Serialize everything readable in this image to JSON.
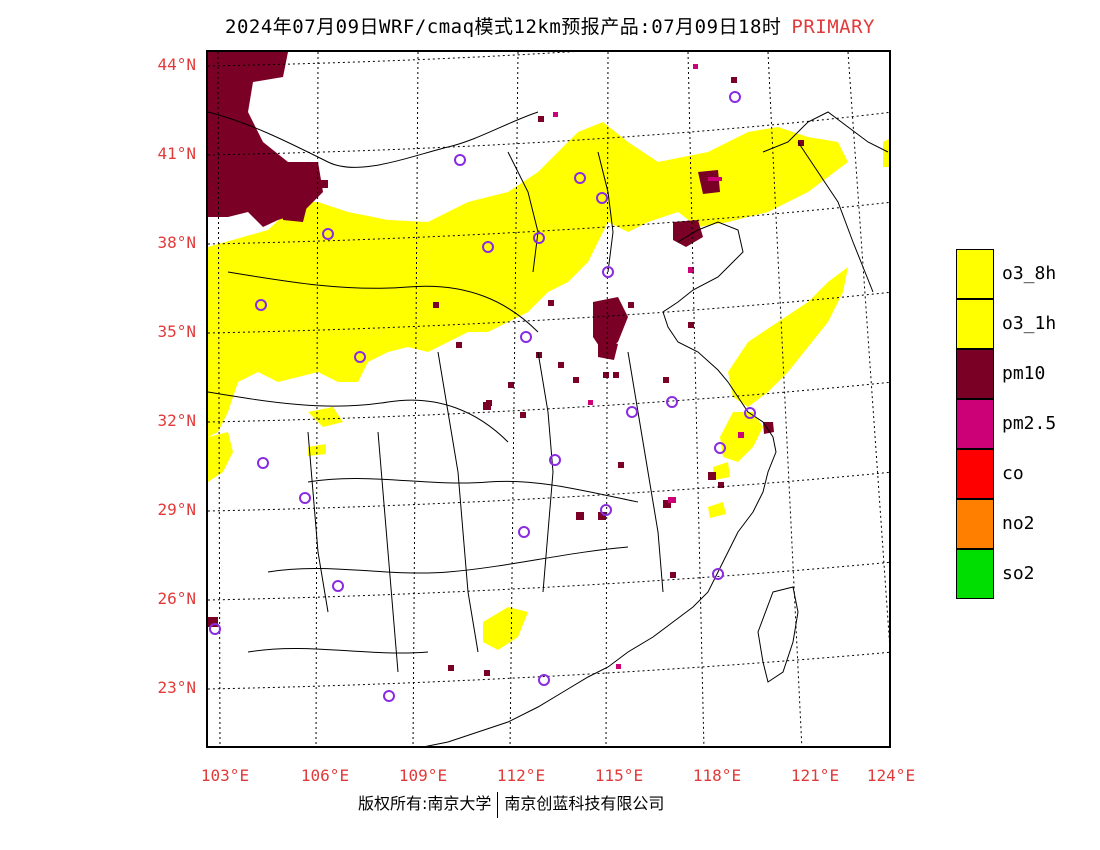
{
  "title": {
    "main": "2024年07月09日WRF/cmaq模式12km预报产品:07月09日18时",
    "tag": "PRIMARY"
  },
  "axes": {
    "latitudes": [
      "44°N",
      "41°N",
      "38°N",
      "35°N",
      "32°N",
      "29°N",
      "26°N",
      "23°N"
    ],
    "longitudes": [
      "103°E",
      "106°E",
      "109°E",
      "112°E",
      "115°E",
      "118°E",
      "121°E",
      "124°E"
    ]
  },
  "legend": [
    {
      "label": "o3_8h",
      "color": "#ffff00"
    },
    {
      "label": "o3_1h",
      "color": "#ffff00"
    },
    {
      "label": "pm10",
      "color": "#7a0026"
    },
    {
      "label": "pm2.5",
      "color": "#cc0077"
    },
    {
      "label": "co",
      "color": "#ff0000"
    },
    {
      "label": "no2",
      "color": "#ff8000"
    },
    {
      "label": "so2",
      "color": "#00dd00"
    }
  ],
  "footer": {
    "left": "版权所有:南京大学",
    "right": "南京创蓝科技有限公司"
  },
  "colors": {
    "ozone": "#ffff00",
    "pm10": "#7a0026",
    "pm25": "#cc0077",
    "station": "#8a2be2",
    "label_red": "#e23a3a"
  }
}
